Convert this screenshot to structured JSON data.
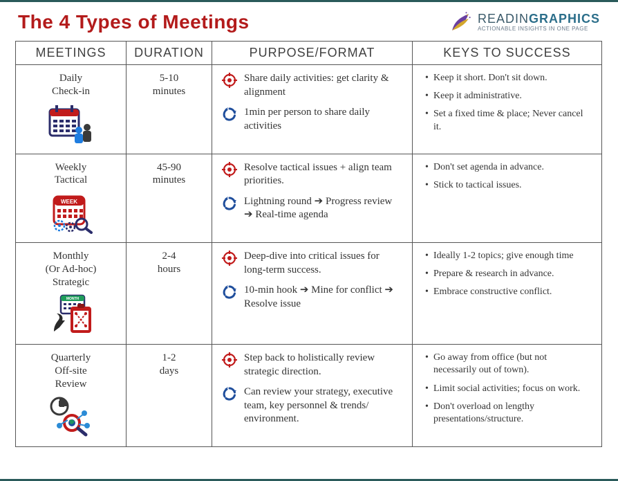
{
  "title": "The 4 Types of Meetings",
  "brand": {
    "name_prefix": "READIN",
    "name_accent": "GRAPHICS",
    "tagline": "ACTIONABLE INSIGHTS IN ONE PAGE"
  },
  "colors": {
    "title": "#b31b1b",
    "border": "#555555",
    "text": "#353535",
    "target_icon": "#c11b1b",
    "cycle_icon": "#1f4e9c",
    "brand_accent": "#2b6e8a",
    "rule": "#2a5a5a"
  },
  "columns": [
    "MEETINGS",
    "DURATION",
    "PURPOSE/FORMAT",
    "KEYS TO SUCCESS"
  ],
  "rows": [
    {
      "name_lines": [
        "Daily",
        "Check-in"
      ],
      "icon": "daily",
      "duration_lines": [
        "5-10",
        "minutes"
      ],
      "purpose": "Share daily activities: get clarity & alignment",
      "format": "1min per person to share daily activities",
      "keys": [
        "Keep it short. Don't sit down.",
        "Keep it administrative.",
        "Set a fixed time & place; Never cancel it."
      ]
    },
    {
      "name_lines": [
        "Weekly",
        "Tactical"
      ],
      "icon": "weekly",
      "duration_lines": [
        "45-90",
        "minutes"
      ],
      "purpose": "Resolve tactical issues + align team priorities.",
      "format_parts": [
        "Lightning round",
        "Progress review",
        "Real-time agenda"
      ],
      "keys": [
        "Don't set agenda in advance.",
        "Stick to tactical issues."
      ]
    },
    {
      "name_lines": [
        "Monthly",
        "(Or Ad-hoc)",
        "Strategic"
      ],
      "icon": "monthly",
      "duration_lines": [
        "2-4",
        "hours"
      ],
      "purpose": "Deep-dive into critical issues for long-term success.",
      "format_parts": [
        "10-min hook",
        "Mine for conflict",
        "Resolve issue"
      ],
      "keys": [
        "Ideally 1-2 topics; give enough time",
        "Prepare & research in advance.",
        "Embrace constructive conflict."
      ]
    },
    {
      "name_lines": [
        "Quarterly",
        "Off-site",
        "Review"
      ],
      "icon": "quarterly",
      "duration_lines": [
        "1-2",
        "days"
      ],
      "purpose": "Step back to holistically review strategic direction.",
      "format": "Can review your strategy, executive team, key personnel & trends/ environment.",
      "keys": [
        "Go away from office (but not necessarily out of town).",
        "Limit social activities; focus on work.",
        "Don't overload on lengthy presentations/structure."
      ]
    }
  ]
}
